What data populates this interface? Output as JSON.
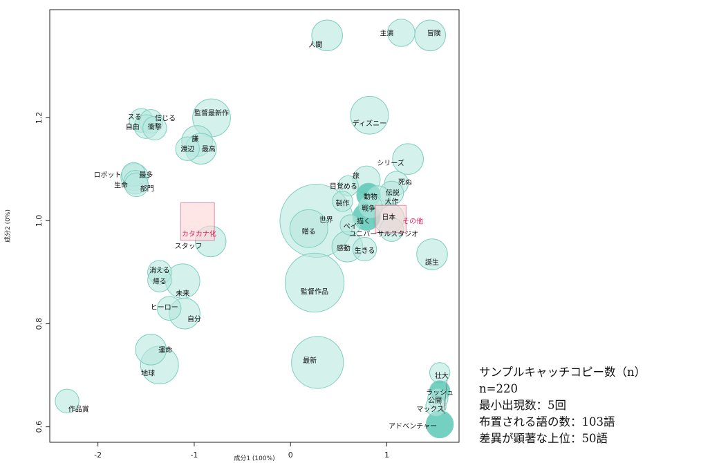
{
  "chart_data": {
    "type": "scatter",
    "xlabel": "成分1 (100%)",
    "ylabel": "成分2 (0%)",
    "xlim": [
      -2.5,
      1.75
    ],
    "ylim": [
      0.57,
      1.41
    ],
    "x_ticks": [
      -2,
      -1,
      0,
      1
    ],
    "y_ticks": [
      0.6,
      0.8,
      1.0,
      1.2
    ],
    "x_tick_labels": [
      "-2",
      "-1",
      "0",
      "1"
    ],
    "y_tick_labels": [
      "0.6",
      "0.8",
      "1.0",
      "1.2"
    ],
    "colors": {
      "bubble_fill": "#b7e8df",
      "bubble_dark": "#5cc8b6",
      "bubble_stroke": "#7fcfc1",
      "group": "#e0245e",
      "group_fill": "#ffd6d6"
    },
    "points": [
      {
        "label": "人間",
        "x": 0.38,
        "y": 1.36,
        "s": 6,
        "lx": 0.26,
        "ly": 1.343
      },
      {
        "label": "主演",
        "x": 1.15,
        "y": 1.365,
        "s": 5,
        "lx": 1.0,
        "ly": 1.365
      },
      {
        "label": "冒険",
        "x": 1.45,
        "y": 1.36,
        "s": 6,
        "lx": 1.49,
        "ly": 1.365
      },
      {
        "label": "監督最新作",
        "x": -0.82,
        "y": 1.2,
        "s": 8,
        "lx": -0.82,
        "ly": 1.21
      },
      {
        "label": "スる",
        "x": -1.55,
        "y": 1.195,
        "s": 4,
        "lx": -1.62,
        "ly": 1.203
      },
      {
        "label": "信じる",
        "x": -1.45,
        "y": 1.193,
        "s": 4,
        "lx": -1.3,
        "ly": 1.2
      },
      {
        "label": "自由",
        "x": -1.5,
        "y": 1.183,
        "s": 4,
        "lx": -1.64,
        "ly": 1.183
      },
      {
        "label": "衝撃",
        "x": -1.41,
        "y": 1.18,
        "s": 4,
        "lx": -1.41,
        "ly": 1.183
      },
      {
        "label": "ディズニー",
        "x": 0.82,
        "y": 1.205,
        "s": 8,
        "lx": 0.82,
        "ly": 1.19
      },
      {
        "label": "謙",
        "x": -0.97,
        "y": 1.155,
        "s": 6,
        "lx": -0.99,
        "ly": 1.16
      },
      {
        "label": "渡辺",
        "x": -1.07,
        "y": 1.14,
        "s": 4,
        "lx": -1.07,
        "ly": 1.14
      },
      {
        "label": "最高",
        "x": -0.93,
        "y": 1.14,
        "s": 6,
        "lx": -0.85,
        "ly": 1.14
      },
      {
        "label": "シリーズ",
        "x": 1.22,
        "y": 1.12,
        "s": 6,
        "lx": 1.04,
        "ly": 1.113
      },
      {
        "label": "ロボット",
        "x": -1.62,
        "y": 1.085,
        "s": 5,
        "lx": -1.9,
        "ly": 1.09
      },
      {
        "label": "最多",
        "x": -1.63,
        "y": 1.09,
        "s": 4,
        "lx": -1.5,
        "ly": 1.09
      },
      {
        "label": "生命",
        "x": -1.61,
        "y": 1.075,
        "s": 4,
        "lx": -1.76,
        "ly": 1.07
      },
      {
        "label": "部門",
        "x": -1.6,
        "y": 1.07,
        "s": 4,
        "lx": -1.49,
        "ly": 1.063
      },
      {
        "label": "旅",
        "x": 0.79,
        "y": 1.08,
        "s": 5,
        "lx": 0.68,
        "ly": 1.088
      },
      {
        "label": "死ぬ",
        "x": 1.1,
        "y": 1.073,
        "s": 4,
        "lx": 1.19,
        "ly": 1.076
      },
      {
        "label": "目覚める",
        "x": 0.6,
        "y": 1.068,
        "s": 3,
        "lx": 0.55,
        "ly": 1.068
      },
      {
        "label": "伝説",
        "x": 1.05,
        "y": 1.054,
        "s": 4,
        "lx": 1.06,
        "ly": 1.055
      },
      {
        "label": "動物",
        "x": 0.81,
        "y": 1.05,
        "s": 4,
        "lx": 0.83,
        "ly": 1.048
      },
      {
        "label": "大作",
        "x": 0.91,
        "y": 1.045,
        "s": 4,
        "lx": 1.05,
        "ly": 1.038
      },
      {
        "label": "製作",
        "x": 0.54,
        "y": 1.038,
        "s": 3,
        "lx": 0.54,
        "ly": 1.035
      },
      {
        "label": "戦争",
        "x": 0.83,
        "y": 1.028,
        "s": 4,
        "lx": 0.81,
        "ly": 1.025
      },
      {
        "label": "描く",
        "x": 0.79,
        "y": 1.008,
        "s": 5,
        "lx": 0.76,
        "ly": 1.0
      },
      {
        "label": "日本",
        "x": 1.02,
        "y": 1.005,
        "s": 6,
        "lx": 1.02,
        "ly": 1.008
      },
      {
        "label": "ペイ",
        "x": 0.62,
        "y": 0.992,
        "s": 3,
        "lx": 0.62,
        "ly": 0.99
      },
      {
        "label": "世界",
        "x": 0.27,
        "y": 1.0,
        "s": 18,
        "lx": 0.37,
        "ly": 1.003
      },
      {
        "label": "贈る",
        "x": 0.19,
        "y": 0.985,
        "s": 8,
        "lx": 0.19,
        "ly": 0.98
      },
      {
        "label": "ユニバーサルスタジオ",
        "x": 1.05,
        "y": 0.983,
        "s": 4,
        "lx": 0.97,
        "ly": 0.975
      },
      {
        "label": "感動",
        "x": 0.59,
        "y": 0.95,
        "s": 6,
        "lx": 0.55,
        "ly": 0.948
      },
      {
        "label": "生きる",
        "x": 0.77,
        "y": 0.945,
        "s": 4,
        "lx": 0.77,
        "ly": 0.943
      },
      {
        "label": "スタッフ",
        "x": -0.83,
        "y": 0.96,
        "s": 6,
        "lx": -1.06,
        "ly": 0.952
      },
      {
        "label": "誕生",
        "x": 1.47,
        "y": 0.935,
        "s": 6,
        "lx": 1.47,
        "ly": 0.92
      },
      {
        "label": "消える",
        "x": -1.36,
        "y": 0.9,
        "s": 4,
        "lx": -1.36,
        "ly": 0.905
      },
      {
        "label": "帰る",
        "x": -1.36,
        "y": 0.885,
        "s": 4,
        "lx": -1.36,
        "ly": 0.883
      },
      {
        "label": "未来",
        "x": -1.12,
        "y": 0.883,
        "s": 7,
        "lx": -1.12,
        "ly": 0.86
      },
      {
        "label": "監督作品",
        "x": 0.25,
        "y": 0.88,
        "s": 14,
        "lx": 0.25,
        "ly": 0.863
      },
      {
        "label": "ヒーロー",
        "x": -1.26,
        "y": 0.83,
        "s": 4,
        "lx": -1.31,
        "ly": 0.833
      },
      {
        "label": "自分",
        "x": -1.1,
        "y": 0.82,
        "s": 6,
        "lx": -1.0,
        "ly": 0.81
      },
      {
        "label": "運命",
        "x": -1.45,
        "y": 0.75,
        "s": 6,
        "lx": -1.3,
        "ly": 0.75
      },
      {
        "label": "地球",
        "x": -1.36,
        "y": 0.72,
        "s": 8,
        "lx": -1.48,
        "ly": 0.705
      },
      {
        "label": "最新",
        "x": 0.28,
        "y": 0.725,
        "s": 12,
        "lx": 0.2,
        "ly": 0.73
      },
      {
        "label": "作品賞",
        "x": -2.32,
        "y": 0.65,
        "s": 4,
        "lx": -2.2,
        "ly": 0.635
      },
      {
        "label": "壮大",
        "x": 1.55,
        "y": 0.705,
        "s": 3,
        "lx": 1.57,
        "ly": 0.7
      },
      {
        "label": "ラッシュ",
        "x": 1.55,
        "y": 0.67,
        "s": 3,
        "lx": 1.55,
        "ly": 0.667
      },
      {
        "label": "公開",
        "x": 1.53,
        "y": 0.655,
        "s": 3,
        "lx": 1.5,
        "ly": 0.652
      },
      {
        "label": "マックス",
        "x": 1.51,
        "y": 0.64,
        "s": 3,
        "lx": 1.45,
        "ly": 0.635
      },
      {
        "label": "アドベンチャー",
        "x": 1.55,
        "y": 0.605,
        "s": 5,
        "lx": 1.27,
        "ly": 0.602
      }
    ],
    "dark_points": [
      "動物",
      "描く",
      "ラッシュ",
      "アドベンチャー"
    ],
    "groups": [
      {
        "label": "カタカナ化",
        "x0": -1.14,
        "x1": -0.79,
        "y0": 0.962,
        "y1": 1.035,
        "lx": -0.95,
        "ly": 0.975
      },
      {
        "label": "その他",
        "x0": 0.88,
        "x1": 1.2,
        "y0": 0.977,
        "y1": 1.03,
        "lx": 1.27,
        "ly": 1.0
      }
    ]
  },
  "stats": {
    "line1": "サンプルキャッチコピー数（n）",
    "line2": "n=220",
    "line3": "最小出現数：5回",
    "line4": "布置される語の数：103語",
    "line5": "差異が顕著な上位：50語"
  }
}
